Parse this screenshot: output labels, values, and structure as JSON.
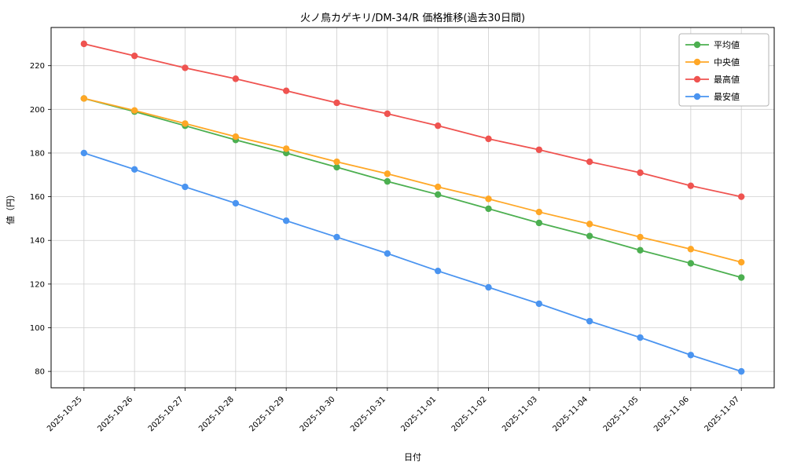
{
  "chart_data": {
    "type": "line",
    "title": "火ノ鳥カゲキリ/DM-34/R 価格推移(過去30日間)",
    "xlabel": "日付",
    "ylabel": "値（円）",
    "grid": true,
    "legend_position": "upper right",
    "ylim": [
      72.5,
      237.5
    ],
    "yticks": [
      80,
      100,
      120,
      140,
      160,
      180,
      200,
      220
    ],
    "x": [
      "2025-10-25",
      "2025-10-26",
      "2025-10-27",
      "2025-10-28",
      "2025-10-29",
      "2025-10-30",
      "2025-10-31",
      "2025-11-01",
      "2025-11-02",
      "2025-11-03",
      "2025-11-04",
      "2025-11-05",
      "2025-11-06",
      "2025-11-07"
    ],
    "series": [
      {
        "key": "average",
        "name": "平均値",
        "color": "#4caf50",
        "values": [
          205,
          199,
          192.5,
          186,
          180,
          173.5,
          167,
          161,
          154.5,
          148,
          142,
          135.5,
          129.5,
          123
        ]
      },
      {
        "key": "median",
        "name": "中央値",
        "color": "#ffa726",
        "values": [
          205,
          199.5,
          193.5,
          187.5,
          182,
          176,
          170.5,
          164.5,
          159,
          153,
          147.5,
          141.5,
          136,
          130
        ]
      },
      {
        "key": "max",
        "name": "最高値",
        "color": "#ef5350",
        "values": [
          230,
          224.5,
          219,
          214,
          208.5,
          203,
          198,
          192.5,
          186.5,
          181.5,
          176,
          171,
          165,
          160
        ]
      },
      {
        "key": "min",
        "name": "最安値",
        "color": "#4a94f0",
        "values": [
          180,
          172.5,
          164.5,
          157,
          149,
          141.5,
          134,
          126,
          118.5,
          111,
          103,
          95.5,
          87.5,
          80
        ]
      }
    ]
  }
}
